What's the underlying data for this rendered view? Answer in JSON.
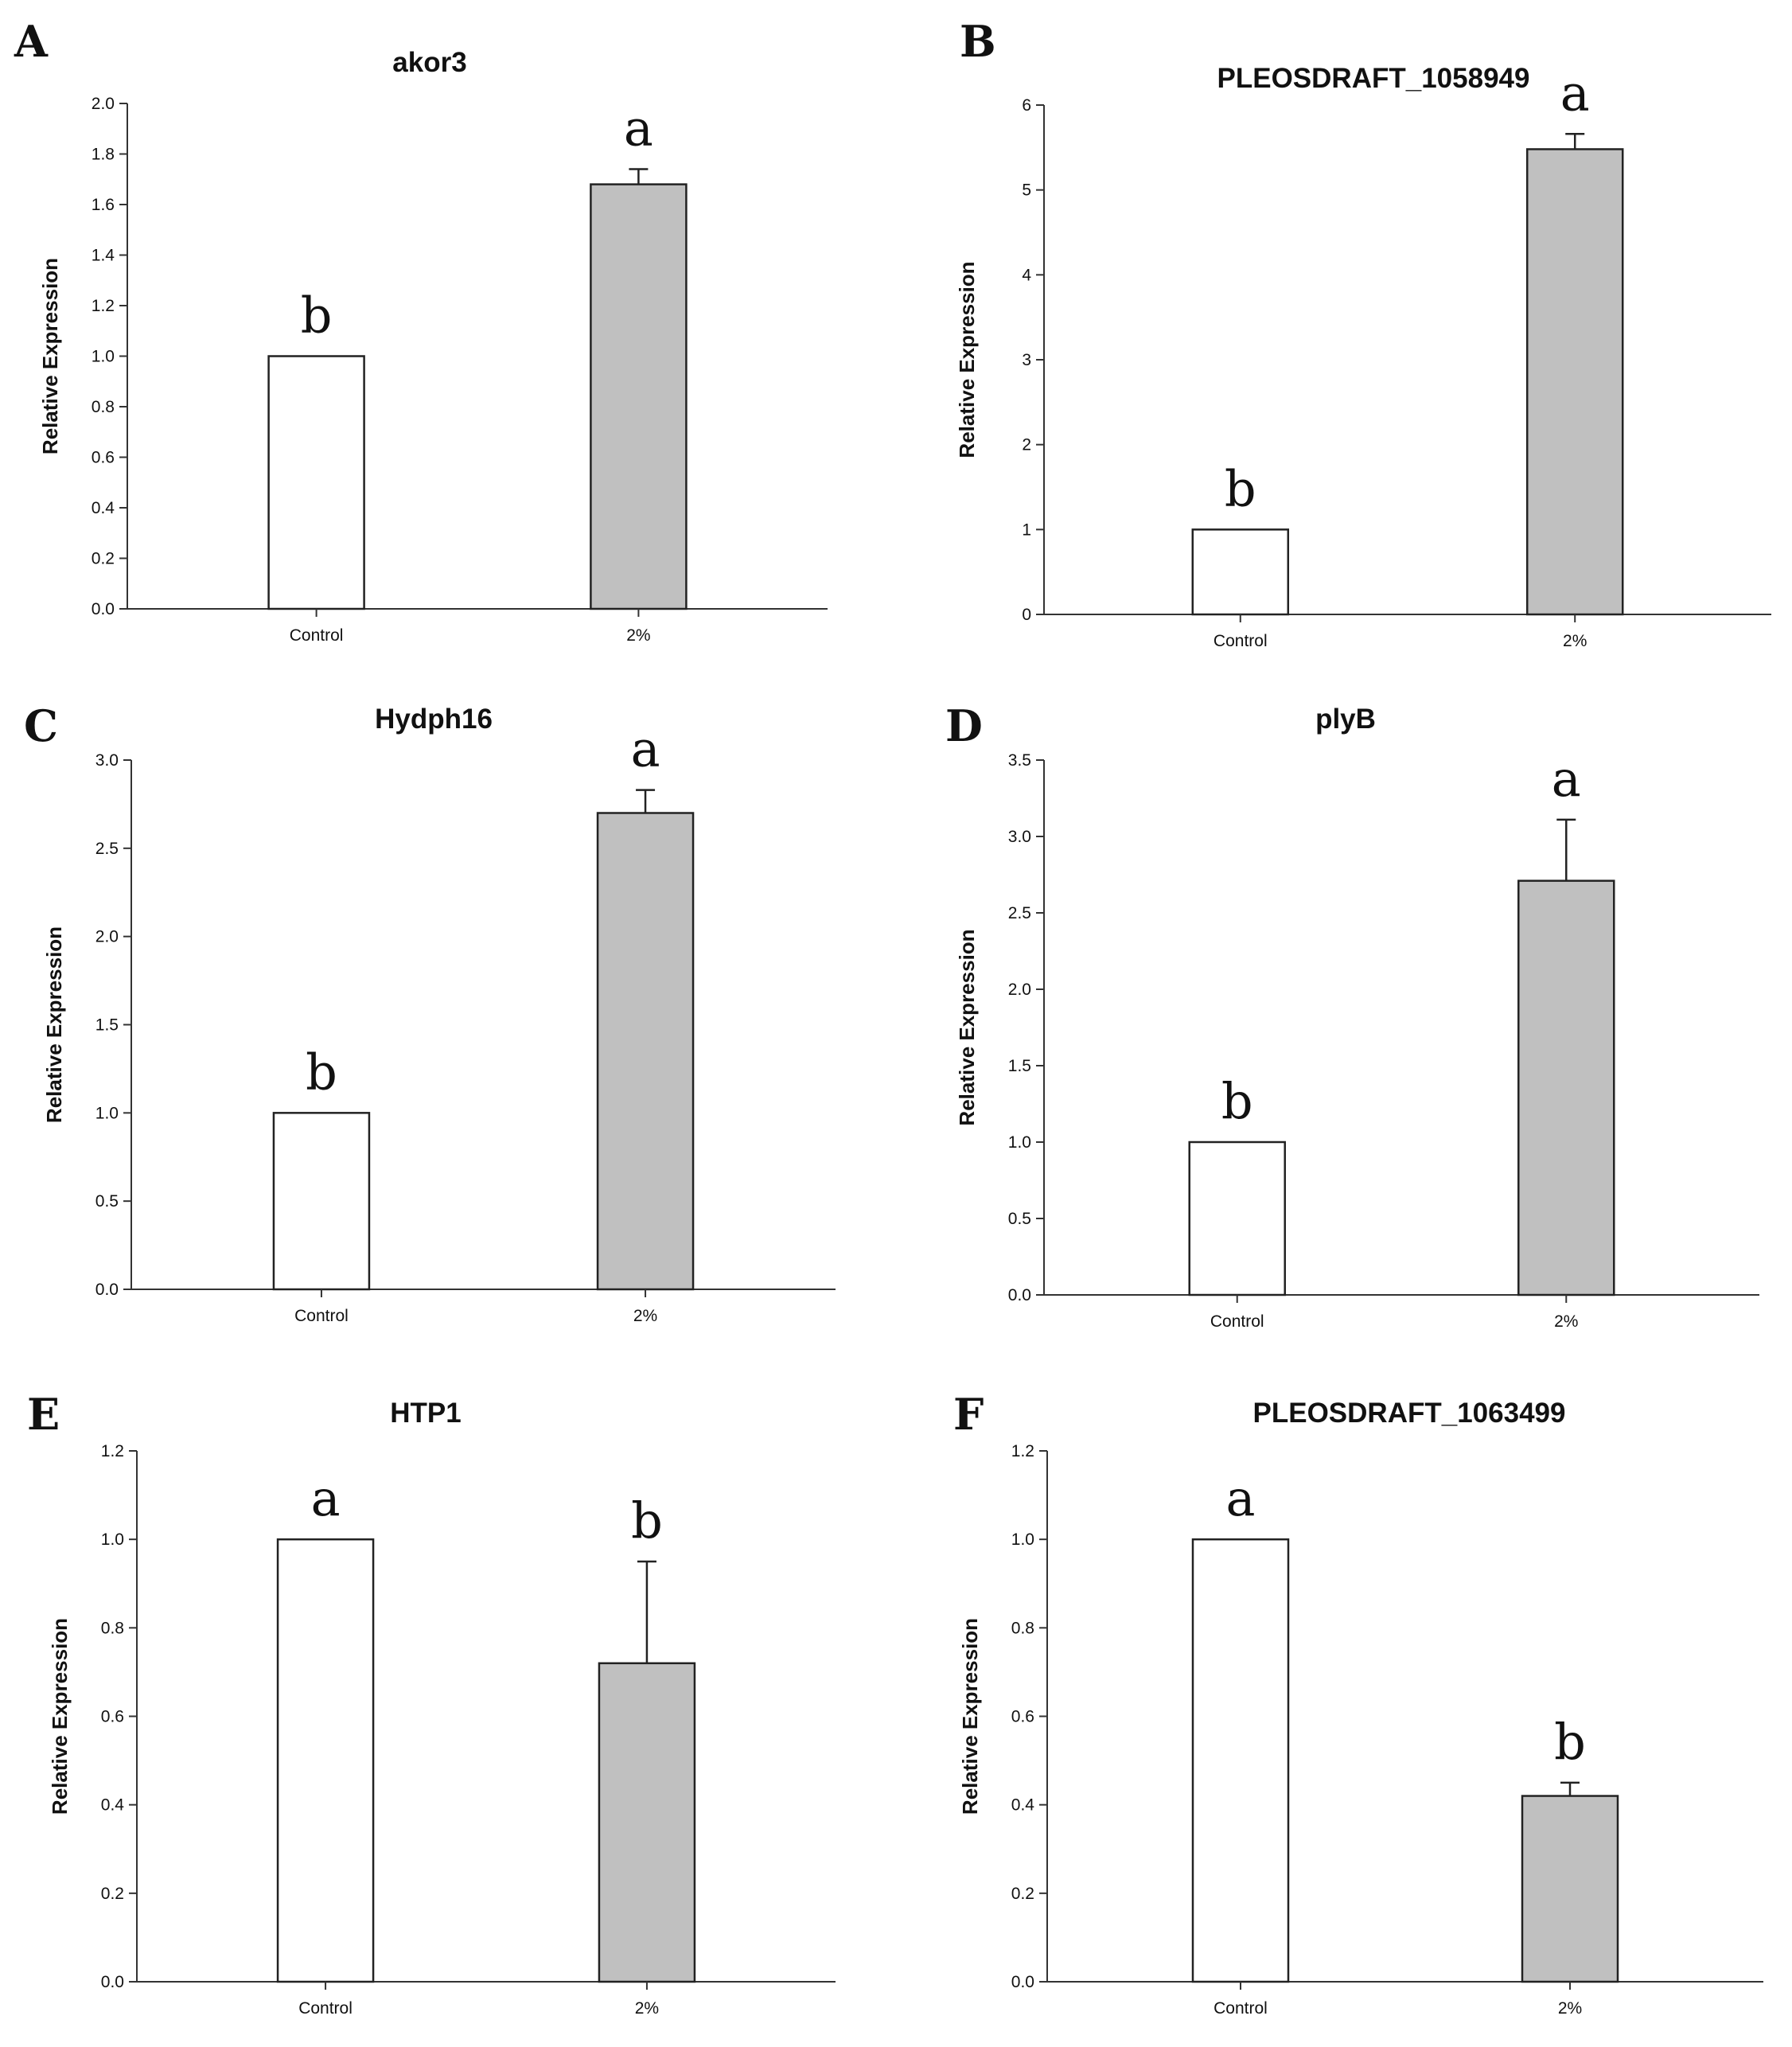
{
  "chart_data": [
    {
      "panel_label": "A",
      "type": "bar",
      "title": "akor3",
      "ylabel": "Relative Expression",
      "categories": [
        "Control",
        "2%"
      ],
      "values": [
        1.0,
        1.68
      ],
      "errors": [
        0.0,
        0.06
      ],
      "significance": [
        "b",
        "a"
      ],
      "ylim": [
        0,
        2.0
      ],
      "yticks": [
        "0.0",
        "0.2",
        "0.4",
        "0.6",
        "0.8",
        "1.0",
        "1.2",
        "1.4",
        "1.6",
        "1.8",
        "2.0"
      ],
      "bar_colors": [
        "#ffffff",
        "#c0c0c0"
      ],
      "grid": false
    },
    {
      "panel_label": "B",
      "type": "bar",
      "title": "PLEOSDRAFT_1058949",
      "ylabel": "Relative Expression",
      "categories": [
        "Control",
        "2%"
      ],
      "values": [
        1.0,
        5.48
      ],
      "errors": [
        0.0,
        0.18
      ],
      "significance": [
        "b",
        "a"
      ],
      "ylim": [
        0,
        6
      ],
      "yticks": [
        "0",
        "1",
        "2",
        "3",
        "4",
        "5",
        "6"
      ],
      "bar_colors": [
        "#ffffff",
        "#c0c0c0"
      ],
      "grid": false
    },
    {
      "panel_label": "C",
      "type": "bar",
      "title": "Hydph16",
      "ylabel": "Relative Expression",
      "categories": [
        "Control",
        "2%"
      ],
      "values": [
        1.0,
        2.7
      ],
      "errors": [
        0.0,
        0.13
      ],
      "significance": [
        "b",
        "a"
      ],
      "ylim": [
        0,
        3.0
      ],
      "yticks": [
        "0.0",
        "0.5",
        "1.0",
        "1.5",
        "2.0",
        "2.5",
        "3.0"
      ],
      "bar_colors": [
        "#ffffff",
        "#c0c0c0"
      ],
      "grid": false
    },
    {
      "panel_label": "D",
      "type": "bar",
      "title": "plyB",
      "ylabel": "Relative Expression",
      "categories": [
        "Control",
        "2%"
      ],
      "values": [
        1.0,
        2.71
      ],
      "errors": [
        0.0,
        0.4
      ],
      "significance": [
        "b",
        "a"
      ],
      "ylim": [
        0,
        3.5
      ],
      "yticks": [
        "0.0",
        "0.5",
        "1.0",
        "1.5",
        "2.0",
        "2.5",
        "3.0",
        "3.5"
      ],
      "bar_colors": [
        "#ffffff",
        "#c0c0c0"
      ],
      "grid": false
    },
    {
      "panel_label": "E",
      "type": "bar",
      "title": "HTP1",
      "ylabel": "Relative Expression",
      "categories": [
        "Control",
        "2%"
      ],
      "values": [
        1.0,
        0.72
      ],
      "errors": [
        0.0,
        0.23
      ],
      "significance": [
        "a",
        "b"
      ],
      "ylim": [
        0,
        1.2
      ],
      "yticks": [
        "0.0",
        "0.2",
        "0.4",
        "0.6",
        "0.8",
        "1.0",
        "1.2"
      ],
      "bar_colors": [
        "#ffffff",
        "#c0c0c0"
      ],
      "grid": false
    },
    {
      "panel_label": "F",
      "type": "bar",
      "title": "PLEOSDRAFT_1063499",
      "ylabel": "Relative Expression",
      "categories": [
        "Control",
        "2%"
      ],
      "values": [
        1.0,
        0.42
      ],
      "errors": [
        0.0,
        0.03
      ],
      "significance": [
        "a",
        "b"
      ],
      "ylim": [
        0,
        1.2
      ],
      "yticks": [
        "0.0",
        "0.2",
        "0.4",
        "0.6",
        "0.8",
        "1.0",
        "1.2"
      ],
      "bar_colors": [
        "#ffffff",
        "#c0c0c0"
      ],
      "grid": false
    }
  ]
}
